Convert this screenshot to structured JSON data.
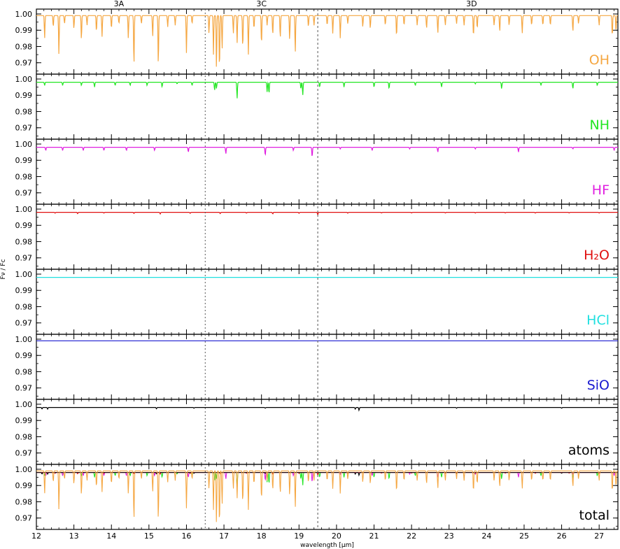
{
  "chart_data": {
    "type": "line",
    "xlabel": "wavelength [µm]",
    "ylabel": "Fν / Fc",
    "xlim": [
      12,
      27.5
    ],
    "ylim": [
      0.963,
      1.003
    ],
    "xticks": [
      "12",
      "13",
      "14",
      "15",
      "16",
      "17",
      "18",
      "19",
      "20",
      "21",
      "22",
      "23",
      "24",
      "25",
      "26",
      "27"
    ],
    "yticks": [
      "1.00",
      "0.99",
      "0.98",
      "0.97"
    ],
    "band_labels": [
      {
        "label": "3A",
        "x": 14.2
      },
      {
        "label": "3C",
        "x": 18.0
      },
      {
        "label": "3D",
        "x": 23.6
      }
    ],
    "band_boundaries": [
      16.5,
      19.5
    ],
    "panels": [
      {
        "name": "OH",
        "color": "#f5a742",
        "continuum": 0.999,
        "lines": [
          [
            12.22,
            0.985
          ],
          [
            12.45,
            0.992
          ],
          [
            12.6,
            0.975
          ],
          [
            12.75,
            0.994
          ],
          [
            13.0,
            0.991
          ],
          [
            13.2,
            0.984
          ],
          [
            13.35,
            0.993
          ],
          [
            13.6,
            0.989
          ],
          [
            13.75,
            0.986
          ],
          [
            14.0,
            0.991
          ],
          [
            14.2,
            0.994
          ],
          [
            14.45,
            0.985
          ],
          [
            14.6,
            0.968
          ],
          [
            14.8,
            0.994
          ],
          [
            15.1,
            0.986
          ],
          [
            15.25,
            0.968
          ],
          [
            15.5,
            0.992
          ],
          [
            15.7,
            0.993
          ],
          [
            16.0,
            0.976
          ],
          [
            16.15,
            0.994
          ],
          [
            16.6,
            0.988
          ],
          [
            16.72,
            0.975
          ],
          [
            16.8,
            0.966
          ],
          [
            16.88,
            0.965
          ],
          [
            16.95,
            0.978
          ],
          [
            17.25,
            0.988
          ],
          [
            17.35,
            0.982
          ],
          [
            17.5,
            0.979
          ],
          [
            17.65,
            0.975
          ],
          [
            17.8,
            0.991
          ],
          [
            18.0,
            0.981
          ],
          [
            18.15,
            0.993
          ],
          [
            18.3,
            0.987
          ],
          [
            18.5,
            0.985
          ],
          [
            18.75,
            0.984
          ],
          [
            18.9,
            0.976
          ],
          [
            19.25,
            0.992
          ],
          [
            19.4,
            0.993
          ],
          [
            19.75,
            0.993
          ],
          [
            19.9,
            0.988
          ],
          [
            20.1,
            0.985
          ],
          [
            20.3,
            0.994
          ],
          [
            20.7,
            0.992
          ],
          [
            20.9,
            0.991
          ],
          [
            21.3,
            0.993
          ],
          [
            21.6,
            0.986
          ],
          [
            21.8,
            0.993
          ],
          [
            22.15,
            0.993
          ],
          [
            22.4,
            0.991
          ],
          [
            22.7,
            0.988
          ],
          [
            22.9,
            0.993
          ],
          [
            23.2,
            0.994
          ],
          [
            23.4,
            0.993
          ],
          [
            23.65,
            0.986
          ],
          [
            23.75,
            0.991
          ],
          [
            24.2,
            0.993
          ],
          [
            24.35,
            0.989
          ],
          [
            24.6,
            0.993
          ],
          [
            24.95,
            0.988
          ],
          [
            25.2,
            0.993
          ],
          [
            25.5,
            0.993
          ],
          [
            25.7,
            0.993
          ],
          [
            26.3,
            0.989
          ],
          [
            26.45,
            0.994
          ],
          [
            27.0,
            0.993
          ],
          [
            27.35,
            0.986
          ],
          [
            27.45,
            0.989
          ]
        ]
      },
      {
        "name": "NH",
        "color": "#22e622",
        "continuum": 0.998,
        "lines": [
          [
            12.22,
            0.996
          ],
          [
            12.7,
            0.996
          ],
          [
            13.2,
            0.996
          ],
          [
            13.55,
            0.995
          ],
          [
            14.1,
            0.996
          ],
          [
            14.5,
            0.996
          ],
          [
            14.95,
            0.996
          ],
          [
            15.35,
            0.995
          ],
          [
            15.75,
            0.997
          ],
          [
            16.15,
            0.996
          ],
          [
            16.75,
            0.993
          ],
          [
            16.8,
            0.994
          ],
          [
            17.35,
            0.988
          ],
          [
            18.15,
            0.992
          ],
          [
            18.2,
            0.991
          ],
          [
            19.05,
            0.994
          ],
          [
            19.1,
            0.99
          ],
          [
            19.55,
            0.995
          ],
          [
            20.2,
            0.995
          ],
          [
            21.0,
            0.995
          ],
          [
            21.4,
            0.994
          ],
          [
            22.1,
            0.996
          ],
          [
            22.8,
            0.995
          ],
          [
            23.7,
            0.997
          ],
          [
            24.4,
            0.994
          ],
          [
            25.45,
            0.996
          ],
          [
            26.3,
            0.994
          ],
          [
            26.95,
            0.996
          ]
        ]
      },
      {
        "name": "HF",
        "color": "#e020e0",
        "continuum": 0.998,
        "lines": [
          [
            12.25,
            0.996
          ],
          [
            12.7,
            0.996
          ],
          [
            13.25,
            0.996
          ],
          [
            13.8,
            0.996
          ],
          [
            14.4,
            0.996
          ],
          [
            15.15,
            0.996
          ],
          [
            16.05,
            0.995
          ],
          [
            17.05,
            0.994
          ],
          [
            18.1,
            0.993
          ],
          [
            18.85,
            0.996
          ],
          [
            19.35,
            0.992
          ],
          [
            20.1,
            0.997
          ],
          [
            20.95,
            0.996
          ],
          [
            21.95,
            0.997
          ],
          [
            22.7,
            0.995
          ],
          [
            23.7,
            0.997
          ],
          [
            24.85,
            0.995
          ],
          [
            26.3,
            0.997
          ],
          [
            27.4,
            0.996
          ]
        ]
      },
      {
        "name": "H₂O",
        "color": "#e01010",
        "continuum": 0.998,
        "lines": [
          [
            12.5,
            0.9975
          ],
          [
            13.1,
            0.9972
          ],
          [
            13.8,
            0.9975
          ],
          [
            14.6,
            0.9973
          ],
          [
            15.3,
            0.997
          ],
          [
            16.1,
            0.9974
          ],
          [
            16.9,
            0.9972
          ],
          [
            17.6,
            0.9975
          ],
          [
            18.3,
            0.997
          ],
          [
            19.0,
            0.9974
          ],
          [
            19.5,
            0.9965
          ],
          [
            20.3,
            0.9975
          ],
          [
            21.2,
            0.9976
          ],
          [
            22.0,
            0.9976
          ],
          [
            22.9,
            0.9976
          ],
          [
            23.7,
            0.9976
          ],
          [
            24.5,
            0.9976
          ],
          [
            25.3,
            0.9975
          ],
          [
            26.2,
            0.9976
          ],
          [
            27.0,
            0.9976
          ]
        ]
      },
      {
        "name": "HCl",
        "color": "#20e0e0",
        "continuum": 0.998,
        "lines": []
      },
      {
        "name": "SiO",
        "color": "#1818d0",
        "continuum": 0.999,
        "lines": []
      },
      {
        "name": "atoms",
        "color": "#000000",
        "continuum": 0.998,
        "lines": [
          [
            12.15,
            0.997
          ],
          [
            12.3,
            0.997
          ],
          [
            15.2,
            0.9972
          ],
          [
            16.2,
            0.9975
          ],
          [
            18.1,
            0.9975
          ],
          [
            20.5,
            0.997
          ],
          [
            20.6,
            0.9962
          ],
          [
            23.2,
            0.9975
          ],
          [
            26.0,
            0.9975
          ]
        ]
      },
      {
        "name": "total",
        "color": "#000000",
        "continuum": 0.998,
        "lines": []
      }
    ]
  }
}
